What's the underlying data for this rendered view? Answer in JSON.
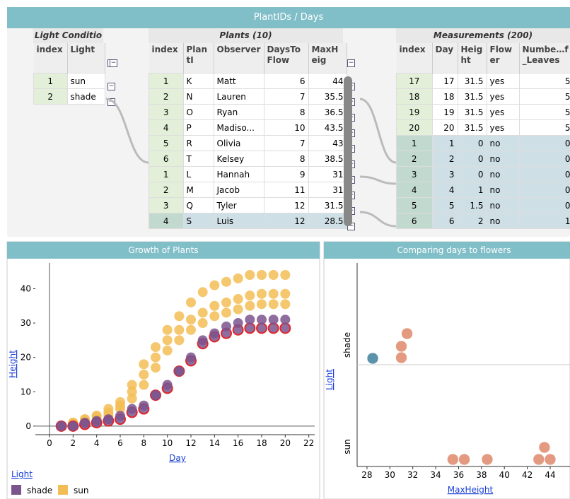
{
  "header": {
    "title": "PlantIDs / Days"
  },
  "tables": [
    {
      "title": "Light Conditio",
      "columns": [
        "index",
        "Light"
      ],
      "widths": [
        47,
        52
      ],
      "left": 47,
      "rows": [
        [
          1,
          "sun"
        ],
        [
          2,
          "shade"
        ]
      ],
      "selected_rows": []
    },
    {
      "title": "Plants (10)",
      "columns": [
        "index",
        "PlantI",
        "Observer",
        "DaysToFlow",
        "MaxHeig"
      ],
      "widths": [
        48,
        42,
        70,
        62,
        53
      ],
      "left": 210,
      "rows": [
        [
          1,
          "K",
          "Matt",
          6,
          44
        ],
        [
          2,
          "N",
          "Lauren",
          7,
          35.5
        ],
        [
          3,
          "O",
          "Ryan",
          8,
          36.5
        ],
        [
          4,
          "P",
          "Madiso...",
          10,
          43.5
        ],
        [
          5,
          "R",
          "Olivia",
          7,
          43
        ],
        [
          6,
          "T",
          "Kelsey",
          8,
          38.5
        ],
        [
          1,
          "L",
          "Hannah",
          9,
          31
        ],
        [
          2,
          "M",
          "Jacob",
          11,
          31
        ],
        [
          3,
          "Q",
          "Tyler",
          12,
          31.5
        ],
        [
          4,
          "S",
          "Luis",
          12,
          28.5
        ]
      ],
      "selected_rows": [
        9
      ]
    },
    {
      "title": "Measurements (200)",
      "columns": [
        "index",
        "Day",
        "Height",
        "Flower",
        "Numbe…f_Leaves"
      ],
      "widths": [
        50,
        35,
        40,
        45,
        76
      ],
      "left": 560,
      "rows": [
        [
          17,
          17,
          31.5,
          "yes",
          5
        ],
        [
          18,
          18,
          31.5,
          "yes",
          5
        ],
        [
          19,
          19,
          31.5,
          "yes",
          5
        ],
        [
          20,
          20,
          31.5,
          "yes",
          5
        ],
        [
          1,
          1,
          0,
          "no",
          0
        ],
        [
          2,
          2,
          0,
          "no",
          0
        ],
        [
          3,
          3,
          0,
          "no",
          0
        ],
        [
          4,
          4,
          1,
          "no",
          0
        ],
        [
          5,
          5,
          1.5,
          "no",
          0
        ],
        [
          6,
          6,
          2,
          "no",
          1
        ]
      ],
      "selected_rows": [
        4,
        5,
        6,
        7,
        8,
        9
      ]
    }
  ],
  "chart_data": [
    {
      "type": "scatter",
      "title": "Growth of Plants",
      "x_label": "Day",
      "y_label": "Height",
      "legend_title": "Light",
      "x": [
        1,
        2,
        3,
        4,
        5,
        6,
        7,
        8,
        9,
        10,
        11,
        12,
        13,
        14,
        15,
        16,
        17,
        18,
        19,
        20
      ],
      "series": [
        {
          "name": "shade",
          "color": "#7b548e",
          "selected": 0,
          "values": [
            [
              0,
              0,
              0.5,
              1,
              1.5,
              2,
              4,
              5,
              9,
              11,
              16,
              19,
              24,
              26,
              27,
              28,
              28.5,
              28.5,
              28.5,
              28.5
            ],
            [
              0,
              0,
              1,
              1.5,
              2,
              3,
              5,
              6,
              9,
              12,
              16,
              20,
              25,
              27,
              29,
              30,
              31,
              31,
              31,
              31
            ]
          ]
        },
        {
          "name": "sun",
          "color": "#f3bd55",
          "values": [
            [
              0,
              1,
              2,
              3,
              5,
              7,
              12,
              18,
              23,
              28,
              32,
              36,
              39,
              41,
              42,
              43,
              44,
              44,
              44,
              44
            ],
            [
              0,
              1,
              2,
              3,
              4,
              6,
              10,
              15,
              20,
              25,
              28,
              31,
              33,
              35,
              36,
              37,
              38,
              38.5,
              38.5,
              38.5
            ],
            [
              0,
              0.5,
              1,
              2,
              3,
              5,
              8,
              12,
              17,
              22,
              25,
              28,
              30,
              32,
              33,
              34,
              35,
              35.5,
              35.5,
              35.5
            ]
          ]
        }
      ],
      "xlim": [
        -1.2,
        22.5
      ],
      "ylim": [
        -2.5,
        47.5
      ],
      "xticks": [
        0,
        2,
        4,
        6,
        8,
        10,
        12,
        14,
        16,
        18,
        20,
        22
      ],
      "yticks": [
        0,
        10,
        20,
        30,
        40
      ],
      "grid": false
    },
    {
      "type": "dotplot",
      "title": "Comparing days to flowers",
      "x_label": "MaxHeight",
      "y_label": "Light",
      "series": [
        {
          "name": "shade",
          "values": [
            28.5,
            31,
            31,
            31.5
          ],
          "colors": [
            "#5b93ab",
            "#e39a80",
            "#e39a80",
            "#e39a80"
          ]
        },
        {
          "name": "sun",
          "values": [
            35.5,
            36.5,
            38.5,
            43,
            43.5,
            44
          ],
          "colors": [
            "#e39a80",
            "#e39a80",
            "#e39a80",
            "#e39a80",
            "#e39a80",
            "#e39a80"
          ]
        }
      ],
      "xlim": [
        27.14,
        45.73
      ],
      "xticks": [
        28,
        30,
        32,
        34,
        36,
        38,
        40,
        42,
        44
      ]
    }
  ]
}
